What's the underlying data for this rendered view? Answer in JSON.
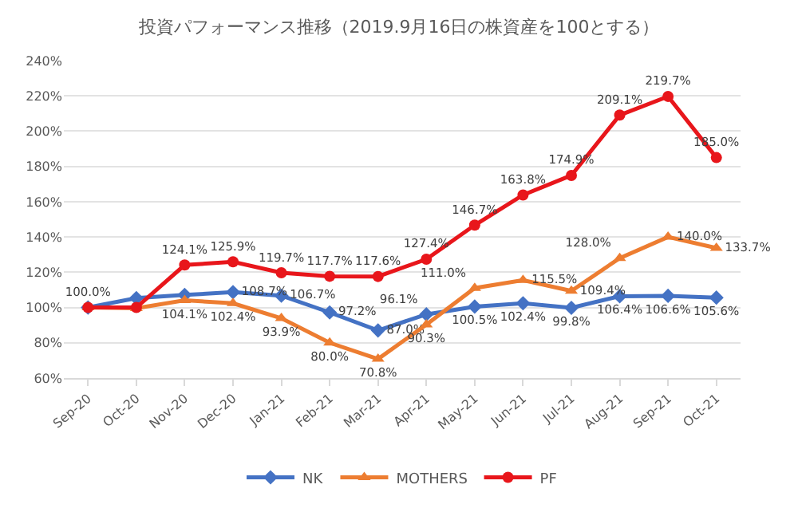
{
  "chart_data": {
    "type": "line",
    "title": "投資パフォーマンス推移（2019.9月16日の株資産を100とする）",
    "categories": [
      "Sep-20",
      "Oct-20",
      "Nov-20",
      "Dec-20",
      "Jan-21",
      "Feb-21",
      "Mar-21",
      "Apr-21",
      "May-21",
      "Jun-21",
      "Jul-21",
      "Aug-21",
      "Sep-21",
      "Oct-21"
    ],
    "series": [
      {
        "name": "NK",
        "color": "#4472c4",
        "marker": "diamond",
        "values": [
          100,
          105.3,
          107.1,
          108.7,
          106.7,
          97.2,
          87.0,
          96.1,
          100.5,
          102.4,
          99.8,
          106.4,
          106.6,
          105.6
        ],
        "value_labels": [
          null,
          null,
          null,
          "108.7%",
          "106.7%",
          "97.2%",
          "87.0%",
          "96.1%",
          "100.5%",
          "102.4%",
          "99.8%",
          "106.4%",
          "106.6%",
          "105.6%"
        ]
      },
      {
        "name": "MOTHERS",
        "color": "#ed7d31",
        "marker": "triangle",
        "values": [
          100,
          99.6,
          104.1,
          102.4,
          93.9,
          80.0,
          70.8,
          90.3,
          111.0,
          115.5,
          109.4,
          128.0,
          140.0,
          133.7
        ],
        "value_labels": [
          null,
          null,
          "104.1%",
          "102.4%",
          "93.9%",
          "80.0%",
          "70.8%",
          "90.3%",
          "111.0%",
          "115.5%",
          "109.4%",
          "128.0%",
          "140.0%",
          "133.7%"
        ]
      },
      {
        "name": "PF",
        "color": "#e8161b",
        "marker": "circle",
        "values": [
          100,
          100.0,
          124.1,
          125.9,
          119.7,
          117.7,
          117.6,
          127.4,
          146.7,
          163.8,
          174.9,
          209.1,
          219.7,
          185.0
        ],
        "value_labels": [
          "100.0%",
          null,
          "124.1%",
          "125.9%",
          "119.7%",
          "117.7%",
          "117.6%",
          "127.4%",
          "146.7%",
          "163.8%",
          "174.9%",
          "209.1%",
          "219.7%",
          "185.0%"
        ]
      }
    ],
    "ylim": [
      60,
      240
    ],
    "yticks": [
      {
        "value": 60,
        "label": "60%"
      },
      {
        "value": 80,
        "label": "80%"
      },
      {
        "value": 100,
        "label": "100%"
      },
      {
        "value": 120,
        "label": "120%"
      },
      {
        "value": 140,
        "label": "140%"
      },
      {
        "value": 160,
        "label": "160%"
      },
      {
        "value": 180,
        "label": "180%"
      },
      {
        "value": 200,
        "label": "200%"
      },
      {
        "value": 220,
        "label": "220%"
      },
      {
        "value": 240,
        "label": "240%"
      }
    ],
    "grid": "y",
    "legend": "bottom",
    "line_style": "solid"
  }
}
